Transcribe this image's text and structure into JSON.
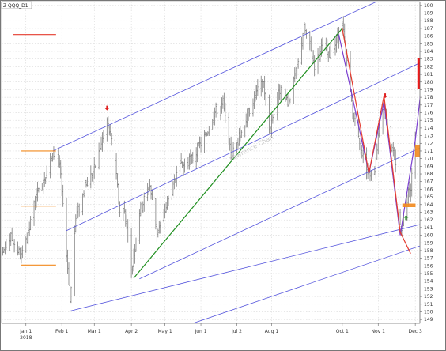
{
  "chart_data": {
    "type": "line",
    "symbol_label": "Z QQQ_D1",
    "watermark": "Lawrence Chan",
    "xlabel": "",
    "ylabel": "",
    "ylim": [
      148.5,
      190.5
    ],
    "y_ticks": [
      149,
      150,
      151,
      152,
      153,
      154,
      155,
      156,
      157,
      158,
      159,
      160,
      161,
      162,
      163,
      164,
      165,
      166,
      167,
      168,
      169,
      170,
      171,
      172,
      173,
      174,
      175,
      176,
      177,
      178,
      179,
      180,
      181,
      182,
      183,
      184,
      185,
      186,
      187,
      188,
      189,
      190
    ],
    "xlim": [
      "2017-12-11",
      "2018-12-07"
    ],
    "x_ticks": [
      {
        "date": "2018-01-01",
        "label": "Jan 1"
      },
      {
        "date": "2018-02-01",
        "label": "Feb 1"
      },
      {
        "date": "2018-03-01",
        "label": "Mar 1"
      },
      {
        "date": "2018-04-02",
        "label": "Apr 2"
      },
      {
        "date": "2018-05-01",
        "label": "May 1"
      },
      {
        "date": "2018-06-01",
        "label": "Jun 1"
      },
      {
        "date": "2018-07-02",
        "label": "Jul 2"
      },
      {
        "date": "2018-08-01",
        "label": "Aug 1"
      },
      {
        "date": "2018-10-01",
        "label": "Oct 1"
      },
      {
        "date": "2018-11-01",
        "label": "Nov 1"
      },
      {
        "date": "2018-12-03",
        "label": "Dec 3"
      }
    ],
    "year_label": {
      "date": "2018-01-01",
      "label": "2018"
    },
    "grid": true,
    "price_series": {
      "name": "",
      "style": "ohlc",
      "color": "#7f7f7f",
      "anchors": [
        [
          "2017-12-11",
          157.6
        ],
        [
          "2017-12-19",
          159.8
        ],
        [
          "2017-12-28",
          157.2
        ],
        [
          "2018-01-02",
          159.3
        ],
        [
          "2018-01-08",
          164.0
        ],
        [
          "2018-01-16",
          167.4
        ],
        [
          "2018-01-26",
          171.0
        ],
        [
          "2018-01-30",
          169.3
        ],
        [
          "2018-02-05",
          157.8
        ],
        [
          "2018-02-08",
          151.5
        ],
        [
          "2018-02-13",
          162.4
        ],
        [
          "2018-02-21",
          166.3
        ],
        [
          "2018-03-02",
          169.0
        ],
        [
          "2018-03-09",
          173.3
        ],
        [
          "2018-03-12",
          175.0
        ],
        [
          "2018-03-19",
          170.1
        ],
        [
          "2018-03-23",
          163.0
        ],
        [
          "2018-03-27",
          163.5
        ],
        [
          "2018-04-02",
          155.2
        ],
        [
          "2018-04-09",
          163.2
        ],
        [
          "2018-04-18",
          166.6
        ],
        [
          "2018-04-24",
          160.2
        ],
        [
          "2018-05-03",
          164.2
        ],
        [
          "2018-05-14",
          168.8
        ],
        [
          "2018-05-25",
          170.1
        ],
        [
          "2018-06-06",
          173.4
        ],
        [
          "2018-06-12",
          176.0
        ],
        [
          "2018-06-20",
          177.2
        ],
        [
          "2018-06-27",
          170.3
        ],
        [
          "2018-07-06",
          173.5
        ],
        [
          "2018-07-17",
          178.2
        ],
        [
          "2018-07-25",
          180.0
        ],
        [
          "2018-07-30",
          173.9
        ],
        [
          "2018-08-08",
          179.0
        ],
        [
          "2018-08-15",
          177.0
        ],
        [
          "2018-08-24",
          182.5
        ],
        [
          "2018-08-29",
          187.3
        ],
        [
          "2018-09-07",
          182.3
        ],
        [
          "2018-09-14",
          184.5
        ],
        [
          "2018-09-20",
          183.2
        ],
        [
          "2018-09-27",
          185.8
        ],
        [
          "2018-10-01",
          187.5
        ],
        [
          "2018-10-10",
          176.0
        ],
        [
          "2018-10-17",
          171.2
        ],
        [
          "2018-10-24",
          167.9
        ],
        [
          "2018-10-29",
          168.8
        ],
        [
          "2018-11-02",
          174.5
        ],
        [
          "2018-11-07",
          176.7
        ],
        [
          "2018-11-12",
          171.5
        ],
        [
          "2018-11-16",
          169.6
        ],
        [
          "2018-11-20",
          161.1
        ],
        [
          "2018-11-23",
          162.2
        ],
        [
          "2018-11-26",
          164.8
        ],
        [
          "2018-11-29",
          166.5
        ],
        [
          "2018-12-03",
          172.5
        ]
      ]
    },
    "overlays": {
      "blue_channel_lines": [
        {
          "from": [
            "2018-01-24",
            171.0
          ],
          "to": [
            "2018-12-07",
            193.1
          ]
        },
        {
          "from": [
            "2018-02-05",
            160.6
          ],
          "to": [
            "2018-12-07",
            182.5
          ]
        },
        {
          "from": [
            "2018-04-09",
            154.3
          ],
          "to": [
            "2018-12-07",
            171.4
          ]
        },
        {
          "from": [
            "2018-02-08",
            150.1
          ],
          "to": [
            "2018-12-07",
            161.4
          ]
        },
        {
          "from": [
            "2018-05-25",
            148.5
          ],
          "to": [
            "2018-12-07",
            158.6
          ]
        }
      ],
      "green_trendline": {
        "from": [
          "2018-04-04",
          154.4
        ],
        "to": [
          "2018-10-01",
          187.0
        ]
      },
      "red_path": [
        [
          "2018-10-01",
          187.0
        ],
        [
          "2018-10-24",
          168.1
        ],
        [
          "2018-11-06",
          178.2
        ],
        [
          "2018-11-20",
          160.4
        ],
        [
          "2018-11-29",
          157.6
        ]
      ],
      "purple_path": [
        [
          "2018-09-28",
          186.2
        ],
        [
          "2018-10-24",
          168.1
        ],
        [
          "2018-11-06",
          177.4
        ],
        [
          "2018-11-20",
          160.0
        ],
        [
          "2018-12-03",
          172.4
        ],
        [
          "2018-12-09",
          180.4
        ]
      ],
      "red_zone": {
        "from": [
          "2018-12-05",
          179.1
        ],
        "to": [
          "2018-12-13",
          183.1
        ],
        "color": "#ee0000"
      },
      "orange_zone": {
        "from": [
          "2018-12-03",
          170.2
        ],
        "to": [
          "2018-12-09",
          171.8
        ],
        "color": "#f28a1e"
      },
      "orange_bar": {
        "from": [
          "2018-11-22",
          163.7
        ],
        "to": [
          "2018-12-03",
          164.1
        ],
        "color": "#f28a1e"
      },
      "horizontal_levels": [
        {
          "from": [
            "2017-12-21",
            186.2
          ],
          "to": [
            "2018-01-27",
            186.2
          ],
          "color": "#e43b2f"
        },
        {
          "from": [
            "2017-12-28",
            171.0
          ],
          "to": [
            "2018-01-27",
            171.0
          ],
          "color": "#f28a1e"
        },
        {
          "from": [
            "2017-12-28",
            163.8
          ],
          "to": [
            "2018-01-27",
            163.8
          ],
          "color": "#f28a1e"
        },
        {
          "from": [
            "2017-12-28",
            156.1
          ],
          "to": [
            "2018-01-27",
            156.1
          ],
          "color": "#f28a1e"
        }
      ],
      "markers": [
        {
          "date": "2018-03-12",
          "value": 176.3,
          "shape": "down-arrow",
          "color": "#e02020"
        },
        {
          "date": "2018-11-07",
          "value": 177.9,
          "shape": "down-arrow",
          "color": "#e02020"
        },
        {
          "date": "2018-11-25",
          "value": 162.6,
          "shape": "up-arrow",
          "color": "#1a8a1a"
        }
      ]
    },
    "colors": {
      "background": "#ffffff",
      "grid": "#cfcfcf",
      "channel": "#5555dd",
      "trend": "#1f8f1f",
      "red_path": "#e43b2f",
      "purple_path": "#7b3fd0"
    }
  }
}
